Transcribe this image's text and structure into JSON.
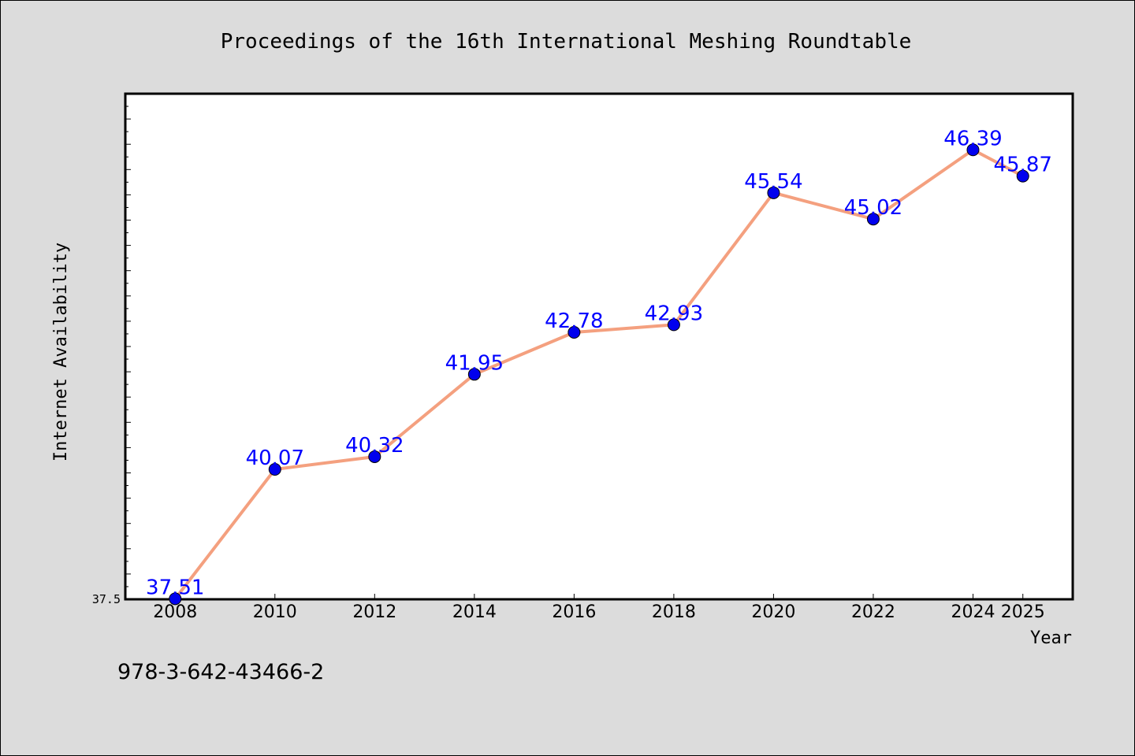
{
  "chart_data": {
    "type": "line",
    "title": "Proceedings of the 16th International Meshing Roundtable",
    "xlabel": "Year",
    "ylabel": "Internet Availability",
    "x": [
      "2008",
      "2010",
      "2012",
      "2014",
      "2016",
      "2018",
      "2020",
      "2022",
      "2024",
      "2025"
    ],
    "values": [
      37.51,
      40.07,
      40.32,
      41.95,
      42.78,
      42.93,
      45.54,
      45.02,
      46.39,
      45.87
    ],
    "data_labels": [
      "37.51",
      "40.07",
      "40.32",
      "41.95",
      "42.78",
      "42.93",
      "45.54",
      "45.02",
      "46.39",
      "45.87"
    ],
    "y_tick_label": "37.5",
    "ylim": [
      37.5,
      47.5
    ],
    "grid": false,
    "line_color": "#f4a07f",
    "marker_color": "#0000ee",
    "label_color": "#0000ff"
  },
  "footer_text": "978-3-642-43466-2"
}
